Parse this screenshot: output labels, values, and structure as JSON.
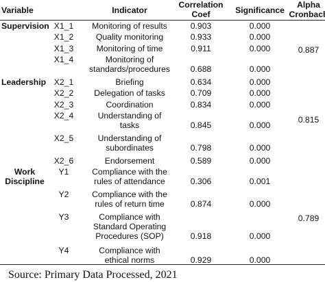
{
  "headers": {
    "variable": "Variable",
    "indicator": "Indicator",
    "correlation": [
      "Correlation",
      "Coef"
    ],
    "significance": "Significance",
    "alpha": [
      "Alpha",
      "Cronbach"
    ]
  },
  "variables": {
    "supervision": [
      "Supervision"
    ],
    "leadership": [
      "Leadership"
    ],
    "discipline": [
      "Work",
      "Discipline"
    ]
  },
  "rows": [
    {
      "code": "X1_1",
      "indicator": [
        "Monitoring of results"
      ],
      "coef": "0.903",
      "sig": "0.000"
    },
    {
      "code": "X1_2",
      "indicator": [
        "Quality monitoring"
      ],
      "coef": "0.933",
      "sig": "0.000"
    },
    {
      "code": "X1_3",
      "indicator": [
        "Monitoring of time"
      ],
      "coef": "0.911",
      "sig": "0.000"
    },
    {
      "code": "X1_4",
      "indicator": [
        "Monitoring of",
        "standards/procedures"
      ],
      "coef": "0.688",
      "sig": "0.000"
    },
    {
      "code": "X2_1",
      "indicator": [
        "Briefing"
      ],
      "coef": "0.634",
      "sig": "0.000"
    },
    {
      "code": "X2_2",
      "indicator": [
        "Delegation of tasks"
      ],
      "coef": "0.709",
      "sig": "0.000"
    },
    {
      "code": "X2_3",
      "indicator": [
        "Coordination"
      ],
      "coef": "0.834",
      "sig": "0.000"
    },
    {
      "code": "X2_4",
      "indicator": [
        "Understanding of",
        "tasks"
      ],
      "coef": "0.845",
      "sig": "0.000"
    },
    {
      "code": "X2_5",
      "indicator": [
        "Understanding of",
        "subordinates"
      ],
      "coef": "0.798",
      "sig": "0.000"
    },
    {
      "code": "X2_6",
      "indicator": [
        "Endorsement"
      ],
      "coef": "0.589",
      "sig": "0.000"
    },
    {
      "code": "Y1",
      "indicator": [
        "Compliance with the",
        "rules of attendance"
      ],
      "coef": "0.306",
      "sig": "0.001"
    },
    {
      "code": "Y2",
      "indicator": [
        "Compliance with the",
        "rules of return time"
      ],
      "coef": "0.874",
      "sig": "0.000"
    },
    {
      "code": "Y3",
      "indicator": [
        "Compliance with",
        "Standard Operating",
        "Procedures (SOP)"
      ],
      "coef": "0.918",
      "sig": "0.000"
    },
    {
      "code": "Y4",
      "indicator": [
        "Compliance with",
        "ethical norms"
      ],
      "coef": "0.929",
      "sig": "0.000"
    }
  ],
  "alpha_values": [
    "0.887",
    "0.815",
    "0.789"
  ],
  "source": "Source: Primary Data Processed, 2021"
}
